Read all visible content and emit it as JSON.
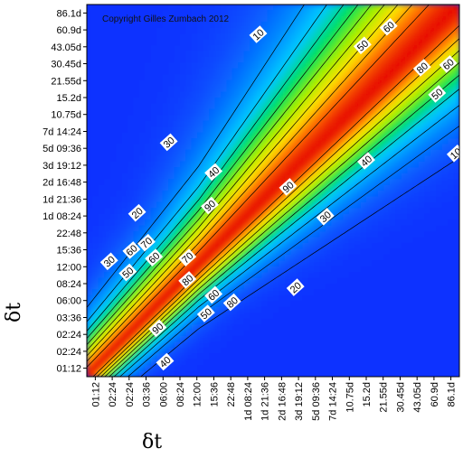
{
  "chart_data": {
    "type": "heatmap",
    "title": "",
    "watermark": "Copyright Gilles Zumbach 2012",
    "xlabel": "δt",
    "ylabel": "δt",
    "x_ticks": [
      "01:12",
      "02:24",
      "02:24",
      "03:36",
      "06:00",
      "08:24",
      "12:00",
      "15:36",
      "22:48",
      "1d 08:24",
      "1d 21:36",
      "2d 16:48",
      "3d 19:12",
      "5d 09:36",
      "7d 14:24",
      "10.75d",
      "15.2d",
      "21.55d",
      "30.45d",
      "43.05d",
      "60.9d",
      "86.1d"
    ],
    "y_ticks": [
      "86.1d",
      "60.9d",
      "43.05d",
      "30.45d",
      "21.55d",
      "15.2d",
      "10.75d",
      "7d 14:24",
      "5d 09:36",
      "3d 19:12",
      "2d 16:48",
      "1d 21:36",
      "1d 08:24",
      "22:48",
      "15:36",
      "12:00",
      "08:24",
      "06:00",
      "03:36",
      "02:24",
      "02:24",
      "01:12"
    ],
    "contour_levels": [
      10,
      20,
      30,
      40,
      50,
      60,
      70,
      80,
      90
    ],
    "contour_labels": [
      "10",
      "20",
      "20",
      "30",
      "30",
      "30",
      "40",
      "40",
      "40",
      "50",
      "50",
      "50",
      "50",
      "60",
      "60",
      "60",
      "60",
      "60",
      "70",
      "70",
      "80",
      "80",
      "80",
      "90",
      "90",
      "90",
      "10"
    ],
    "colormap": [
      "#0a32ff",
      "#00c8ff",
      "#00e060",
      "#a0f000",
      "#ffe000",
      "#ff7000",
      "#e81000"
    ],
    "grid": false,
    "legend": "none"
  }
}
